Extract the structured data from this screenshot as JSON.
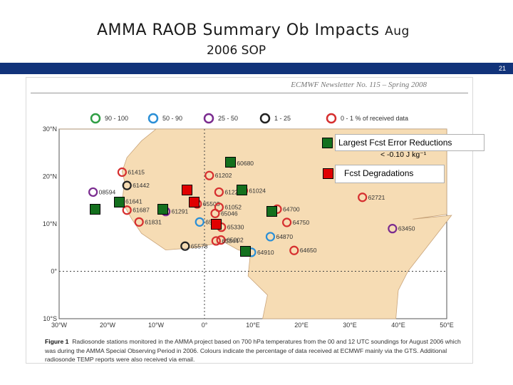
{
  "slide": {
    "title": "AMMA RAOB Summary Ob Impacts",
    "title_suffix": "Aug",
    "subtitle": "2006 SOP",
    "slide_number": "21",
    "accent_color": "#11337a"
  },
  "figure": {
    "newsletter_header": "ECMWF Newsletter No. 115 – Spring 2008",
    "legend": [
      {
        "label": "90 - 100",
        "color": "#2f9e44"
      },
      {
        "label": "50 - 90",
        "color": "#2b8fd6"
      },
      {
        "label": "25 - 50",
        "color": "#7a2b8f"
      },
      {
        "label": "1 - 25",
        "color": "#222222"
      },
      {
        "label": "0 - 1 % of received data",
        "color": "#d62f2f"
      }
    ],
    "lat_labels": [
      "30°N",
      "20°N",
      "10°N",
      "0°",
      "10°S"
    ],
    "lon_labels": [
      "30°W",
      "20°W",
      "10°W",
      "0°",
      "10°E",
      "20°E",
      "30°E",
      "40°E",
      "50°E"
    ],
    "stations": [
      {
        "id": "61415",
        "lon": -17,
        "lat": 20.9,
        "color": "#d62f2f"
      },
      {
        "id": "61442",
        "lon": -16,
        "lat": 18.1,
        "color": "#222222"
      },
      {
        "id": "08594",
        "lon": -23,
        "lat": 16.7,
        "color": "#7a2b8f"
      },
      {
        "id": "61641",
        "lon": -17.5,
        "lat": 14.7,
        "color": "#2f9e44"
      },
      {
        "id": "61687",
        "lon": -16,
        "lat": 12.9,
        "color": "#d62f2f"
      },
      {
        "id": "61831",
        "lon": -13.5,
        "lat": 10.4,
        "color": "#d62f2f"
      },
      {
        "id": "61291",
        "lon": -8,
        "lat": 12.6,
        "color": "#7a2b8f"
      },
      {
        "id": "65418",
        "lon": -1,
        "lat": 10.4,
        "color": "#2b8fd6"
      },
      {
        "id": "65578",
        "lon": -4,
        "lat": 5.3,
        "color": "#222222"
      },
      {
        "id": "61223",
        "lon": 3,
        "lat": 16.7,
        "color": "#d62f2f"
      },
      {
        "id": "61202",
        "lon": 1,
        "lat": 20.2,
        "color": "#d62f2f"
      },
      {
        "id": "60680",
        "lon": 5.5,
        "lat": 22.8,
        "color": "#d62f2f"
      },
      {
        "id": "61024",
        "lon": 8,
        "lat": 17,
        "color": "#d62f2f"
      },
      {
        "id": "65503",
        "lon": -1.5,
        "lat": 14.2,
        "color": "#d62f2f"
      },
      {
        "id": "61052",
        "lon": 3,
        "lat": 13.5,
        "color": "#d62f2f"
      },
      {
        "id": "65046",
        "lon": 2.2,
        "lat": 12.2,
        "color": "#d62f2f"
      },
      {
        "id": "65330",
        "lon": 3.5,
        "lat": 9.3,
        "color": "#d62f2f"
      },
      {
        "id": "65202",
        "lon": 3.4,
        "lat": 6.6,
        "color": "#d62f2f"
      },
      {
        "id": "65344",
        "lon": 2.4,
        "lat": 6.4,
        "color": "#d62f2f"
      },
      {
        "id": "64910",
        "lon": 9.7,
        "lat": 4,
        "color": "#2b8fd6"
      },
      {
        "id": "64870",
        "lon": 13.6,
        "lat": 7.3,
        "color": "#2b8fd6"
      },
      {
        "id": "64700",
        "lon": 15,
        "lat": 13.1,
        "color": "#d62f2f"
      },
      {
        "id": "64750",
        "lon": 17,
        "lat": 10.3,
        "color": "#d62f2f"
      },
      {
        "id": "64650",
        "lon": 18.5,
        "lat": 4.4,
        "color": "#d62f2f"
      },
      {
        "id": "62721",
        "lon": 32.6,
        "lat": 15.6,
        "color": "#d62f2f"
      },
      {
        "id": "63450",
        "lon": 38.8,
        "lat": 9,
        "color": "#7a2b8f"
      }
    ],
    "caption_label": "Figure 1",
    "caption_text": "Radiosonde stations monitored in the AMMA project based on 700 hPa temperatures from the 00 and 12 UTC soundings for August 2006 which was during the AMMA Special Observing Period in 2006. Colours indicate the percentage of data received at ECMWF mainly via the GTS. Additional radiosonde TEMP reports were also received via email."
  },
  "overlay": {
    "largest_reductions_label": "Largest Fcst Error Reductions",
    "threshold_label": "< -0.10 J kg⁻¹",
    "degradations_label": "Fcst Degradations",
    "green_markers": [
      {
        "lon": 5.5,
        "lat": 23
      },
      {
        "lon": 7.8,
        "lat": 17
      },
      {
        "lon": -17.5,
        "lat": 14.5
      },
      {
        "lon": -22.5,
        "lat": 13
      },
      {
        "lon": -8.5,
        "lat": 13
      },
      {
        "lon": 14,
        "lat": 12.5
      },
      {
        "lon": 8.5,
        "lat": 4.2
      }
    ],
    "red_markers": [
      {
        "lon": -3.5,
        "lat": 17
      },
      {
        "lon": -2,
        "lat": 14.5
      },
      {
        "lon": 2.5,
        "lat": 9.8
      }
    ]
  }
}
